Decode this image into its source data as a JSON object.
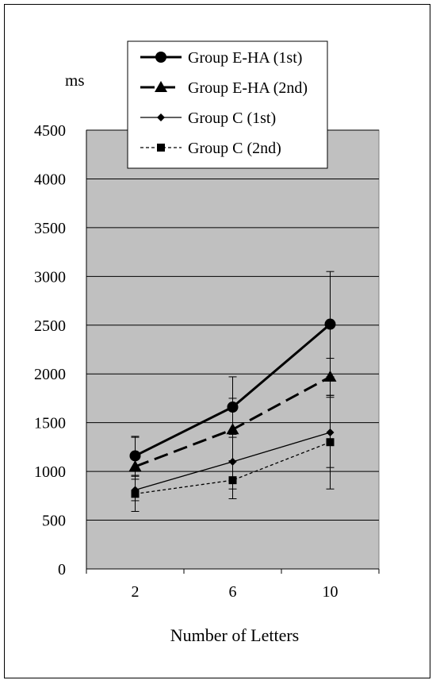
{
  "chart_data": {
    "type": "line",
    "title": "",
    "ylabel": "ms",
    "xlabel": "Number of Letters",
    "categories": [
      "2",
      "6",
      "10"
    ],
    "ylim": [
      0,
      4500
    ],
    "yticks": [
      0,
      500,
      1000,
      1500,
      2000,
      2500,
      3000,
      3500,
      4000,
      4500
    ],
    "ytick_labels": [
      "0",
      "500",
      "1000",
      "1500",
      "2000",
      "2500",
      "3000",
      "3500",
      "4000",
      "4500"
    ],
    "grid": true,
    "plot_background": "#c0c0c0",
    "legend_position": "top",
    "series": [
      {
        "name": "Group E-HA (1st)",
        "values": [
          1160,
          1660,
          2510
        ],
        "error": [
          200,
          310,
          540
        ],
        "marker": "circle",
        "line": "solid-thick"
      },
      {
        "name": "Group E-HA (2nd)",
        "values": [
          1050,
          1430,
          1970
        ],
        "error": [
          300,
          320,
          190
        ],
        "marker": "triangle",
        "line": "dashed-thick"
      },
      {
        "name": "Group C (1st)",
        "values": [
          810,
          1100,
          1400
        ],
        "error": [
          110,
          280,
          360
        ],
        "marker": "diamond",
        "line": "solid-thin"
      },
      {
        "name": "Group C (2nd)",
        "values": [
          770,
          910,
          1300
        ],
        "error": [
          180,
          190,
          480
        ],
        "marker": "square",
        "line": "dotted-thin"
      }
    ]
  }
}
